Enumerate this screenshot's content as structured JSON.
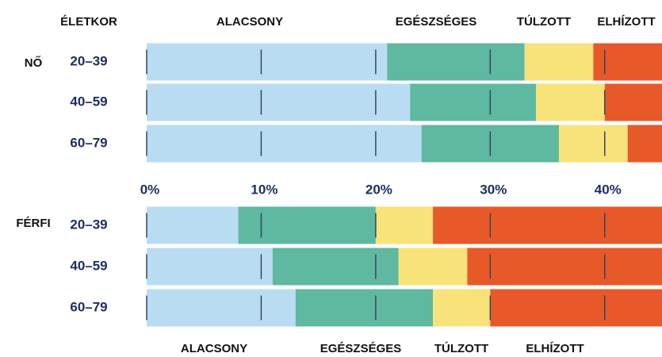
{
  "chart_data": [
    {
      "type": "stacked_barh",
      "title": "NŐ",
      "y_label": "ÉLETKOR",
      "categories": [
        "20–39",
        "40–59",
        "60–79"
      ],
      "xlim": [
        0,
        45
      ],
      "series": [
        {
          "name": "ALACSONY",
          "color": "#b9dcf2",
          "values": [
            21,
            23,
            24
          ]
        },
        {
          "name": "EGÉSZSÉGES",
          "color": "#5fb8a0",
          "values": [
            12,
            11,
            12
          ]
        },
        {
          "name": "TÚLZOTT",
          "color": "#f8e27a",
          "values": [
            6,
            6,
            6
          ]
        },
        {
          "name": "ELHÍZOTT",
          "color": "#e8592a",
          "values": [
            6,
            5,
            3
          ]
        }
      ]
    },
    {
      "type": "stacked_barh",
      "title": "FÉRFI",
      "categories": [
        "20–39",
        "40–59",
        "60–79"
      ],
      "xlim": [
        0,
        45
      ],
      "xticks": [
        {
          "value": 0,
          "label": "0%"
        },
        {
          "value": 10,
          "label": "10%"
        },
        {
          "value": 20,
          "label": "20%"
        },
        {
          "value": 30,
          "label": "30%"
        },
        {
          "value": 40,
          "label": "40%"
        }
      ],
      "series": [
        {
          "name": "ALACSONY",
          "color": "#b9dcf2",
          "values": [
            8,
            11,
            13
          ]
        },
        {
          "name": "EGÉSZSÉGES",
          "color": "#5fb8a0",
          "values": [
            12,
            11,
            12
          ]
        },
        {
          "name": "TÚLZOTT",
          "color": "#f8e27a",
          "values": [
            5,
            6,
            5
          ]
        },
        {
          "name": "ELHÍZOTT",
          "color": "#e8592a",
          "values": [
            20,
            17,
            15
          ]
        }
      ]
    }
  ]
}
